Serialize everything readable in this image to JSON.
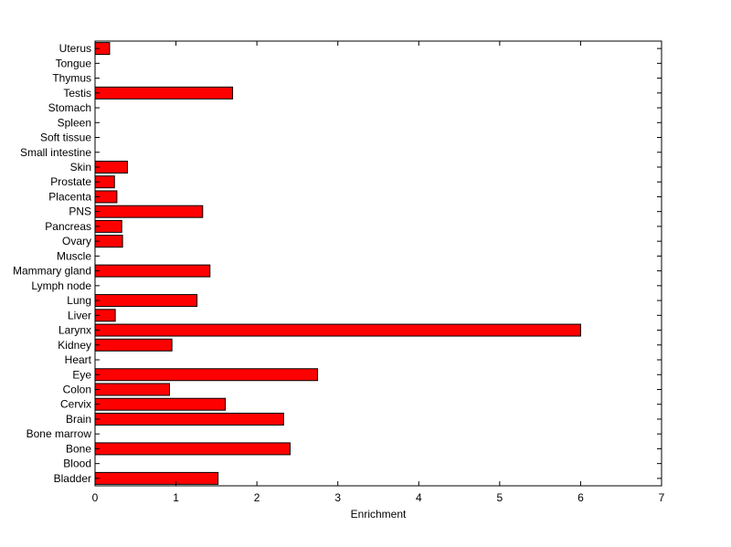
{
  "chart_data": {
    "type": "bar",
    "orientation": "horizontal",
    "categories": [
      "Uterus",
      "Tongue",
      "Thymus",
      "Testis",
      "Stomach",
      "Spleen",
      "Soft tissue",
      "Small intestine",
      "Skin",
      "Prostate",
      "Placenta",
      "PNS",
      "Pancreas",
      "Ovary",
      "Muscle",
      "Mammary gland",
      "Lymph node",
      "Lung",
      "Liver",
      "Larynx",
      "Kidney",
      "Heart",
      "Eye",
      "Colon",
      "Cervix",
      "Brain",
      "Bone marrow",
      "Bone",
      "Blood",
      "Bladder"
    ],
    "values": [
      0.18,
      0,
      0,
      1.7,
      0,
      0,
      0,
      0,
      0.4,
      0.24,
      0.27,
      1.33,
      0.33,
      0.34,
      0,
      1.42,
      0,
      1.26,
      0.25,
      6.0,
      0.95,
      0,
      2.75,
      0.92,
      1.61,
      2.33,
      0,
      2.41,
      0,
      1.52
    ],
    "xlabel": "Enrichment",
    "ylabel": "",
    "title": "",
    "xlim": [
      0,
      7
    ],
    "xticks": [
      "0",
      "1",
      "2",
      "3",
      "4",
      "5",
      "6",
      "7"
    ],
    "grid": false,
    "bar_color": "#ff0000",
    "bar_edge_color": "#000000"
  }
}
